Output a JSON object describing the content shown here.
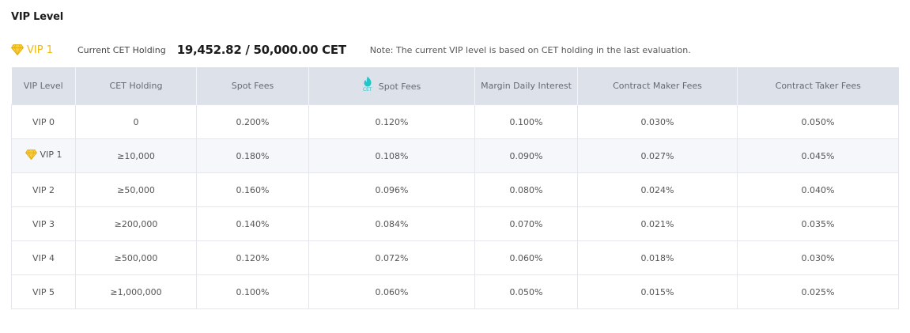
{
  "page": {
    "title": "VIP Level"
  },
  "summary": {
    "current_vip": "VIP 1",
    "holding_label": "Current CET Holding",
    "holding_value": "19,452.82 / 50,000.00 CET",
    "note": "Note: The current VIP level is based on CET holding in the last evaluation."
  },
  "table": {
    "headers": {
      "vip_level": "VIP Level",
      "cet_holding": "CET Holding",
      "spot_fees": "Spot Fees",
      "cet_spot_fees": "Spot Fees",
      "cet_icon_text": "CET",
      "margin_interest": "Margin Daily Interest",
      "maker_fees": "Contract Maker Fees",
      "taker_fees": "Contract Taker Fees"
    },
    "rows": [
      {
        "level": "VIP 0",
        "holding": "0",
        "spot": "0.200%",
        "cet_spot": "0.120%",
        "margin": "0.100%",
        "maker": "0.030%",
        "taker": "0.050%",
        "current": false
      },
      {
        "level": "VIP 1",
        "holding": "≥10,000",
        "spot": "0.180%",
        "cet_spot": "0.108%",
        "margin": "0.090%",
        "maker": "0.027%",
        "taker": "0.045%",
        "current": true
      },
      {
        "level": "VIP 2",
        "holding": "≥50,000",
        "spot": "0.160%",
        "cet_spot": "0.096%",
        "margin": "0.080%",
        "maker": "0.024%",
        "taker": "0.040%",
        "current": false
      },
      {
        "level": "VIP 3",
        "holding": "≥200,000",
        "spot": "0.140%",
        "cet_spot": "0.084%",
        "margin": "0.070%",
        "maker": "0.021%",
        "taker": "0.035%",
        "current": false
      },
      {
        "level": "VIP 4",
        "holding": "≥500,000",
        "spot": "0.120%",
        "cet_spot": "0.072%",
        "margin": "0.060%",
        "maker": "0.018%",
        "taker": "0.030%",
        "current": false
      },
      {
        "level": "VIP 5",
        "holding": "≥1,000,000",
        "spot": "0.100%",
        "cet_spot": "0.060%",
        "margin": "0.050%",
        "maker": "0.015%",
        "taker": "0.025%",
        "current": false
      }
    ]
  },
  "colors": {
    "vip_gold": "#f0b90b",
    "cet_teal": "#25c4c9",
    "header_bg": "#dde1ea",
    "current_row_bg": "#f5f7fb"
  },
  "icons": {
    "vip": "diamond-icon",
    "cet": "cet-flame-icon"
  }
}
